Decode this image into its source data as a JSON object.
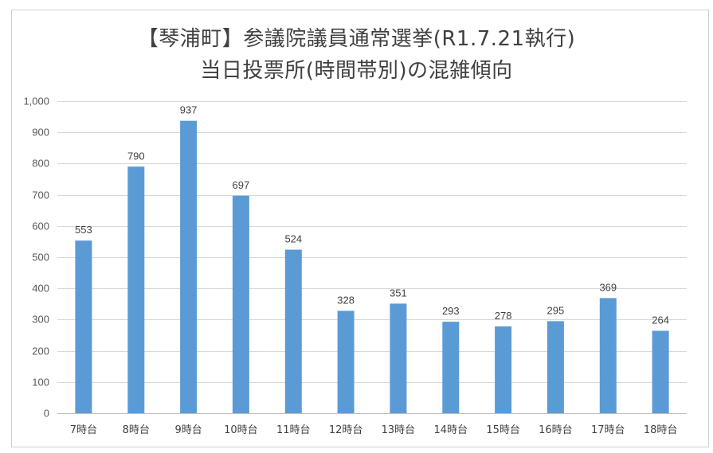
{
  "colors": {
    "bar": "#5b9bd5",
    "grid": "#d9d9d9",
    "axis": "#bfbfbf",
    "frame": "#d0d0d0",
    "title": "#404040"
  },
  "chart_data": {
    "type": "bar",
    "title_lines": [
      "【琴浦町】参議院議員通常選挙(R1.7.21執行)",
      "当日投票所(時間帯別)の混雑傾向"
    ],
    "categories": [
      "7時台",
      "8時台",
      "9時台",
      "10時台",
      "11時台",
      "12時台",
      "13時台",
      "14時台",
      "15時台",
      "16時台",
      "17時台",
      "18時台"
    ],
    "values": [
      553,
      790,
      937,
      697,
      524,
      328,
      351,
      293,
      278,
      295,
      369,
      264
    ],
    "ylim": [
      0,
      1000
    ],
    "yticks": [
      0,
      100,
      200,
      300,
      400,
      500,
      600,
      700,
      800,
      900,
      1000
    ],
    "ytick_labels": [
      "0",
      "100",
      "200",
      "300",
      "400",
      "500",
      "600",
      "700",
      "800",
      "900",
      "1,000"
    ],
    "grid": true,
    "legend": "none",
    "data_labels": true
  }
}
